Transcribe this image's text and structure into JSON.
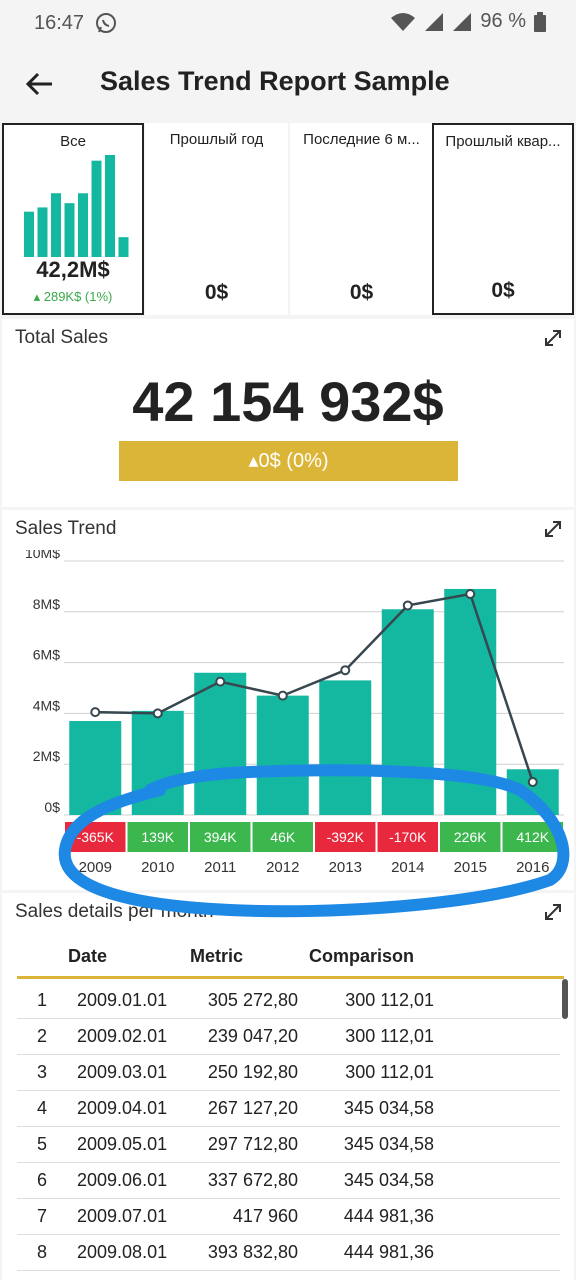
{
  "status": {
    "time": "16:47",
    "battery": "96 %"
  },
  "appbar": {
    "title": "Sales Trend Report Sample"
  },
  "kpis": [
    {
      "label": "Все",
      "value": "42,2M$",
      "delta": "289K$ (1%)",
      "selected": true
    },
    {
      "label": "Прошлый год",
      "value": "0$"
    },
    {
      "label": "Последние 6 м...",
      "value": "0$"
    },
    {
      "label": "Прошлый квар...",
      "value": "0$",
      "selected": true
    }
  ],
  "kpi_spark": [
    3.2,
    3.5,
    4.5,
    3.8,
    4.5,
    6.8,
    7.2,
    1.4
  ],
  "total_sales": {
    "title": "Total Sales",
    "value": "42 154 932$",
    "delta": "0$ (0%)"
  },
  "sales_trend": {
    "title": "Sales Trend"
  },
  "chart_data": {
    "type": "bar",
    "categories": [
      "2009",
      "2010",
      "2011",
      "2012",
      "2013",
      "2014",
      "2015",
      "2016"
    ],
    "series": [
      {
        "values": [
          3.7,
          4.1,
          5.6,
          4.7,
          5.3,
          8.1,
          8.9,
          1.8
        ]
      },
      {
        "type": "line",
        "values": [
          4.05,
          4.0,
          5.25,
          4.7,
          5.7,
          8.25,
          8.7,
          1.3
        ]
      }
    ],
    "y_ticks": [
      "0$",
      "2M$",
      "4M$",
      "6M$",
      "8M$",
      "10M$"
    ],
    "ylim": [
      0,
      10
    ],
    "differences": [
      "-365K",
      "139K",
      "394K",
      "46K",
      "-392K",
      "-170K",
      "226K",
      "412K"
    ],
    "colors": {
      "bar": "#14b8a0",
      "line": "#37474f",
      "pos": "#3cb74e",
      "neg": "#e8283c"
    }
  },
  "sales_details": {
    "title": "Sales details per month",
    "columns": [
      "Date",
      "Metric",
      "Comparison"
    ],
    "rows": [
      [
        "1",
        "2009.01.01",
        "305 272,80",
        "300 112,01"
      ],
      [
        "2",
        "2009.02.01",
        "239 047,20",
        "300 112,01"
      ],
      [
        "3",
        "2009.03.01",
        "250 192,80",
        "300 112,01"
      ],
      [
        "4",
        "2009.04.01",
        "267 127,20",
        "345 034,58"
      ],
      [
        "5",
        "2009.05.01",
        "297 712,80",
        "345 034,58"
      ],
      [
        "6",
        "2009.06.01",
        "337 672,80",
        "345 034,58"
      ],
      [
        "7",
        "2009.07.01",
        "417 960",
        "444 981,36"
      ],
      [
        "8",
        "2009.08.01",
        "393 832,80",
        "444 981,36"
      ]
    ]
  }
}
